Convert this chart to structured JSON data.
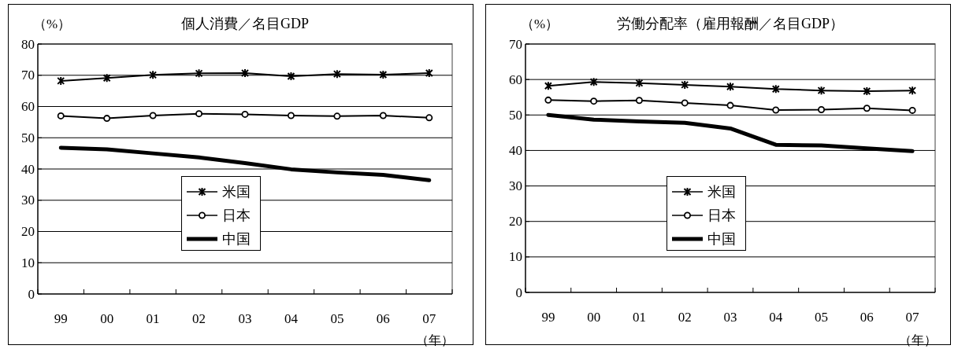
{
  "chart_data": [
    {
      "type": "line",
      "title": "個人消費／名目GDP",
      "ylabel": "（%）",
      "xlabel": "（年）",
      "categories": [
        "99",
        "00",
        "01",
        "02",
        "03",
        "04",
        "05",
        "06",
        "07"
      ],
      "ylim": [
        0,
        80
      ],
      "yticks": [
        0,
        10,
        20,
        30,
        40,
        50,
        60,
        70,
        80
      ],
      "grid": "y",
      "legend": "center",
      "series": [
        {
          "name": "米国",
          "color": "#000000",
          "marker": "cross",
          "values": [
            68.2,
            69.1,
            70.1,
            70.6,
            70.7,
            69.7,
            70.4,
            70.2,
            70.7
          ]
        },
        {
          "name": "日本",
          "color": "#000000",
          "marker": "circle",
          "values": [
            57.0,
            56.2,
            57.1,
            57.7,
            57.5,
            57.1,
            56.9,
            57.1,
            56.4
          ]
        },
        {
          "name": "中国",
          "color": "#000000",
          "marker": "none",
          "values": [
            46.8,
            46.3,
            45.0,
            43.7,
            41.9,
            39.9,
            38.9,
            38.1,
            36.4
          ]
        }
      ]
    },
    {
      "type": "line",
      "title": "労働分配率（雇用報酬／名目GDP）",
      "ylabel": "（%）",
      "xlabel": "（年）",
      "categories": [
        "99",
        "00",
        "01",
        "02",
        "03",
        "04",
        "05",
        "06",
        "07"
      ],
      "ylim": [
        0,
        70
      ],
      "yticks": [
        0,
        10,
        20,
        30,
        40,
        50,
        60,
        70
      ],
      "grid": "y",
      "legend": "center",
      "series": [
        {
          "name": "米国",
          "color": "#000000",
          "marker": "cross",
          "values": [
            58.2,
            59.3,
            59.0,
            58.5,
            58.0,
            57.3,
            56.9,
            56.7,
            56.9
          ]
        },
        {
          "name": "日本",
          "color": "#000000",
          "marker": "circle",
          "values": [
            54.2,
            53.9,
            54.1,
            53.4,
            52.7,
            51.4,
            51.5,
            51.9,
            51.3
          ]
        },
        {
          "name": "中国",
          "color": "#000000",
          "marker": "none",
          "values": [
            50.0,
            48.7,
            48.2,
            47.8,
            46.2,
            41.6,
            41.4,
            40.6,
            39.8
          ]
        }
      ]
    }
  ]
}
